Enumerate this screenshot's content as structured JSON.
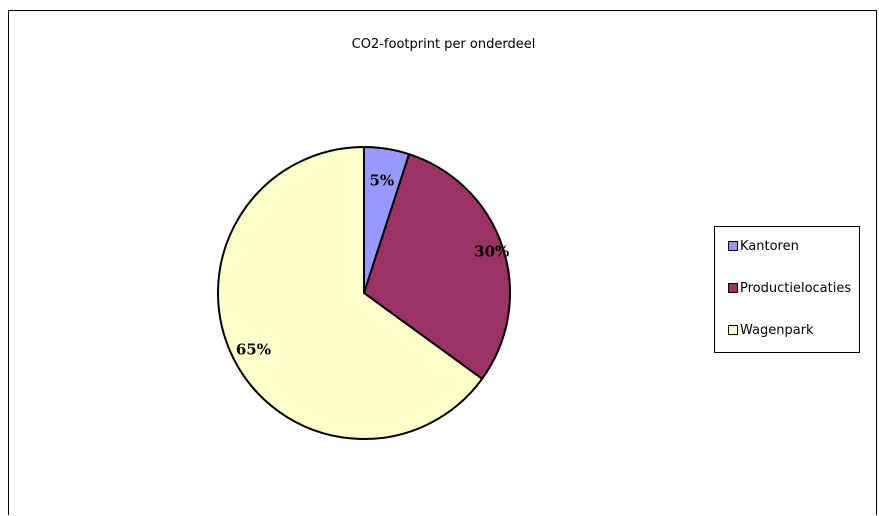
{
  "chart_data": {
    "type": "pie",
    "title": "CO2-footprint per onderdeel",
    "categories": [
      "Kantoren",
      "Productielocaties",
      "Wagenpark"
    ],
    "values": [
      5,
      30,
      65
    ],
    "labels": [
      "5%",
      "30%",
      "65%"
    ],
    "colors": [
      "#9999ff",
      "#993366",
      "#ffffcc"
    ],
    "legend": "right"
  }
}
